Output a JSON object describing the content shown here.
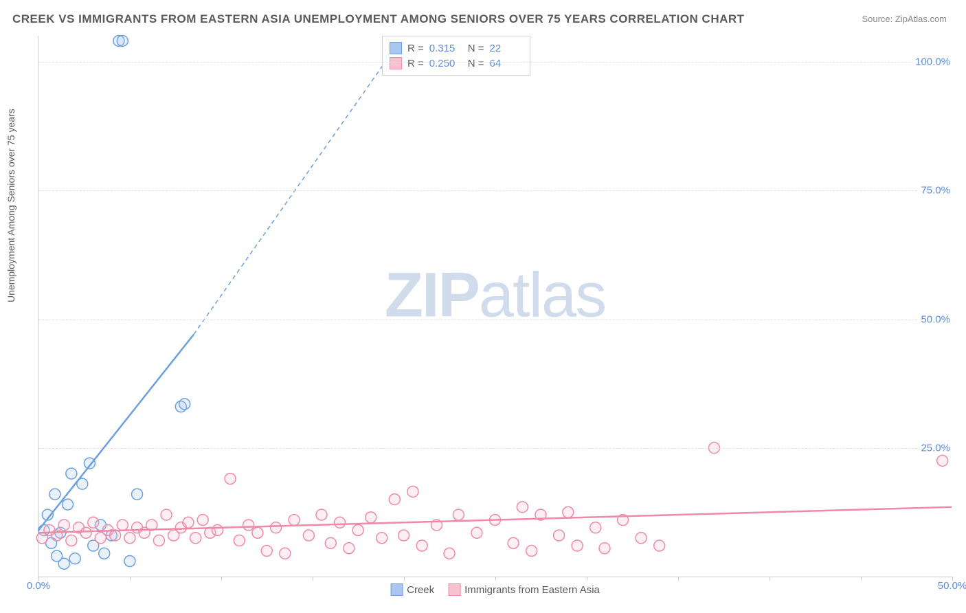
{
  "title": "CREEK VS IMMIGRANTS FROM EASTERN ASIA UNEMPLOYMENT AMONG SENIORS OVER 75 YEARS CORRELATION CHART",
  "source": "Source: ZipAtlas.com",
  "ylabel": "Unemployment Among Seniors over 75 years",
  "watermark_zip": "ZIP",
  "watermark_atlas": "atlas",
  "chart": {
    "type": "scatter",
    "background_color": "#ffffff",
    "grid_color": "#e0e0e0",
    "axis_color": "#cccccc",
    "xlim": [
      0,
      50
    ],
    "ylim": [
      0,
      105
    ],
    "xticks": [
      0,
      5,
      10,
      15,
      20,
      25,
      30,
      35,
      40,
      45,
      50
    ],
    "xtick_labels_shown": {
      "0": "0.0%",
      "50": "50.0%"
    },
    "yticks": [
      25,
      50,
      75,
      100
    ],
    "ytick_labels": {
      "25": "25.0%",
      "50": "50.0%",
      "75": "75.0%",
      "100": "100.0%"
    },
    "label_color": "#5b8dd6",
    "label_fontsize": 15,
    "title_fontsize": 17,
    "title_color": "#5a5a5a",
    "marker_radius": 8,
    "marker_stroke_width": 1.5,
    "marker_fill_opacity": 0.25,
    "series": [
      {
        "name": "Creek",
        "color_stroke": "#6a9fe0",
        "color_fill": "#a9c7ef",
        "R": "0.315",
        "N": "22",
        "points": [
          [
            0.3,
            9.0
          ],
          [
            0.5,
            12.0
          ],
          [
            0.7,
            6.5
          ],
          [
            0.9,
            16.0
          ],
          [
            1.0,
            4.0
          ],
          [
            1.2,
            8.5
          ],
          [
            1.4,
            2.5
          ],
          [
            1.6,
            14.0
          ],
          [
            1.8,
            20.0
          ],
          [
            2.0,
            3.5
          ],
          [
            2.4,
            18.0
          ],
          [
            2.8,
            22.0
          ],
          [
            3.0,
            6.0
          ],
          [
            3.4,
            10.0
          ],
          [
            3.6,
            4.5
          ],
          [
            4.0,
            8.0
          ],
          [
            4.4,
            104.0
          ],
          [
            4.6,
            104.0
          ],
          [
            5.0,
            3.0
          ],
          [
            5.4,
            16.0
          ],
          [
            7.8,
            33.0
          ],
          [
            8.0,
            33.5
          ]
        ],
        "trend": {
          "x1": 0,
          "y1": 9.0,
          "x2": 8.5,
          "y2": 47.0,
          "dash_x2": 20.0,
          "dash_y2": 105.0,
          "width": 2.5
        }
      },
      {
        "name": "Immigrants from Eastern Asia",
        "color_stroke": "#ef8aa6",
        "color_fill": "#f7c1d0",
        "R": "0.250",
        "N": "64",
        "points": [
          [
            0.2,
            7.5
          ],
          [
            0.6,
            9.0
          ],
          [
            1.0,
            8.0
          ],
          [
            1.4,
            10.0
          ],
          [
            1.8,
            7.0
          ],
          [
            2.2,
            9.5
          ],
          [
            2.6,
            8.5
          ],
          [
            3.0,
            10.5
          ],
          [
            3.4,
            7.5
          ],
          [
            3.8,
            9.0
          ],
          [
            4.2,
            8.0
          ],
          [
            4.6,
            10.0
          ],
          [
            5.0,
            7.5
          ],
          [
            5.4,
            9.5
          ],
          [
            5.8,
            8.5
          ],
          [
            6.2,
            10.0
          ],
          [
            6.6,
            7.0
          ],
          [
            7.0,
            12.0
          ],
          [
            7.4,
            8.0
          ],
          [
            7.8,
            9.5
          ],
          [
            8.2,
            10.5
          ],
          [
            8.6,
            7.5
          ],
          [
            9.0,
            11.0
          ],
          [
            9.4,
            8.5
          ],
          [
            9.8,
            9.0
          ],
          [
            10.5,
            19.0
          ],
          [
            11.0,
            7.0
          ],
          [
            11.5,
            10.0
          ],
          [
            12.0,
            8.5
          ],
          [
            12.5,
            5.0
          ],
          [
            13.0,
            9.5
          ],
          [
            13.5,
            4.5
          ],
          [
            14.0,
            11.0
          ],
          [
            14.8,
            8.0
          ],
          [
            15.5,
            12.0
          ],
          [
            16.0,
            6.5
          ],
          [
            16.5,
            10.5
          ],
          [
            17.0,
            5.5
          ],
          [
            17.5,
            9.0
          ],
          [
            18.2,
            11.5
          ],
          [
            18.8,
            7.5
          ],
          [
            19.5,
            15.0
          ],
          [
            20.0,
            8.0
          ],
          [
            20.5,
            16.5
          ],
          [
            21.0,
            6.0
          ],
          [
            21.8,
            10.0
          ],
          [
            22.5,
            4.5
          ],
          [
            23.0,
            12.0
          ],
          [
            24.0,
            8.5
          ],
          [
            25.0,
            11.0
          ],
          [
            26.0,
            6.5
          ],
          [
            26.5,
            13.5
          ],
          [
            27.0,
            5.0
          ],
          [
            27.5,
            12.0
          ],
          [
            28.5,
            8.0
          ],
          [
            29.0,
            12.5
          ],
          [
            29.5,
            6.0
          ],
          [
            30.5,
            9.5
          ],
          [
            31.0,
            5.5
          ],
          [
            32.0,
            11.0
          ],
          [
            33.0,
            7.5
          ],
          [
            34.0,
            6.0
          ],
          [
            37.0,
            25.0
          ],
          [
            49.5,
            22.5
          ]
        ],
        "trend": {
          "x1": 0,
          "y1": 8.5,
          "x2": 50,
          "y2": 13.5,
          "width": 2.5
        }
      }
    ]
  },
  "legend_series": [
    {
      "label": "Creek",
      "fill": "#a9c7ef",
      "stroke": "#6a9fe0"
    },
    {
      "label": "Immigrants from Eastern Asia",
      "fill": "#f7c1d0",
      "stroke": "#ef8aa6"
    }
  ]
}
